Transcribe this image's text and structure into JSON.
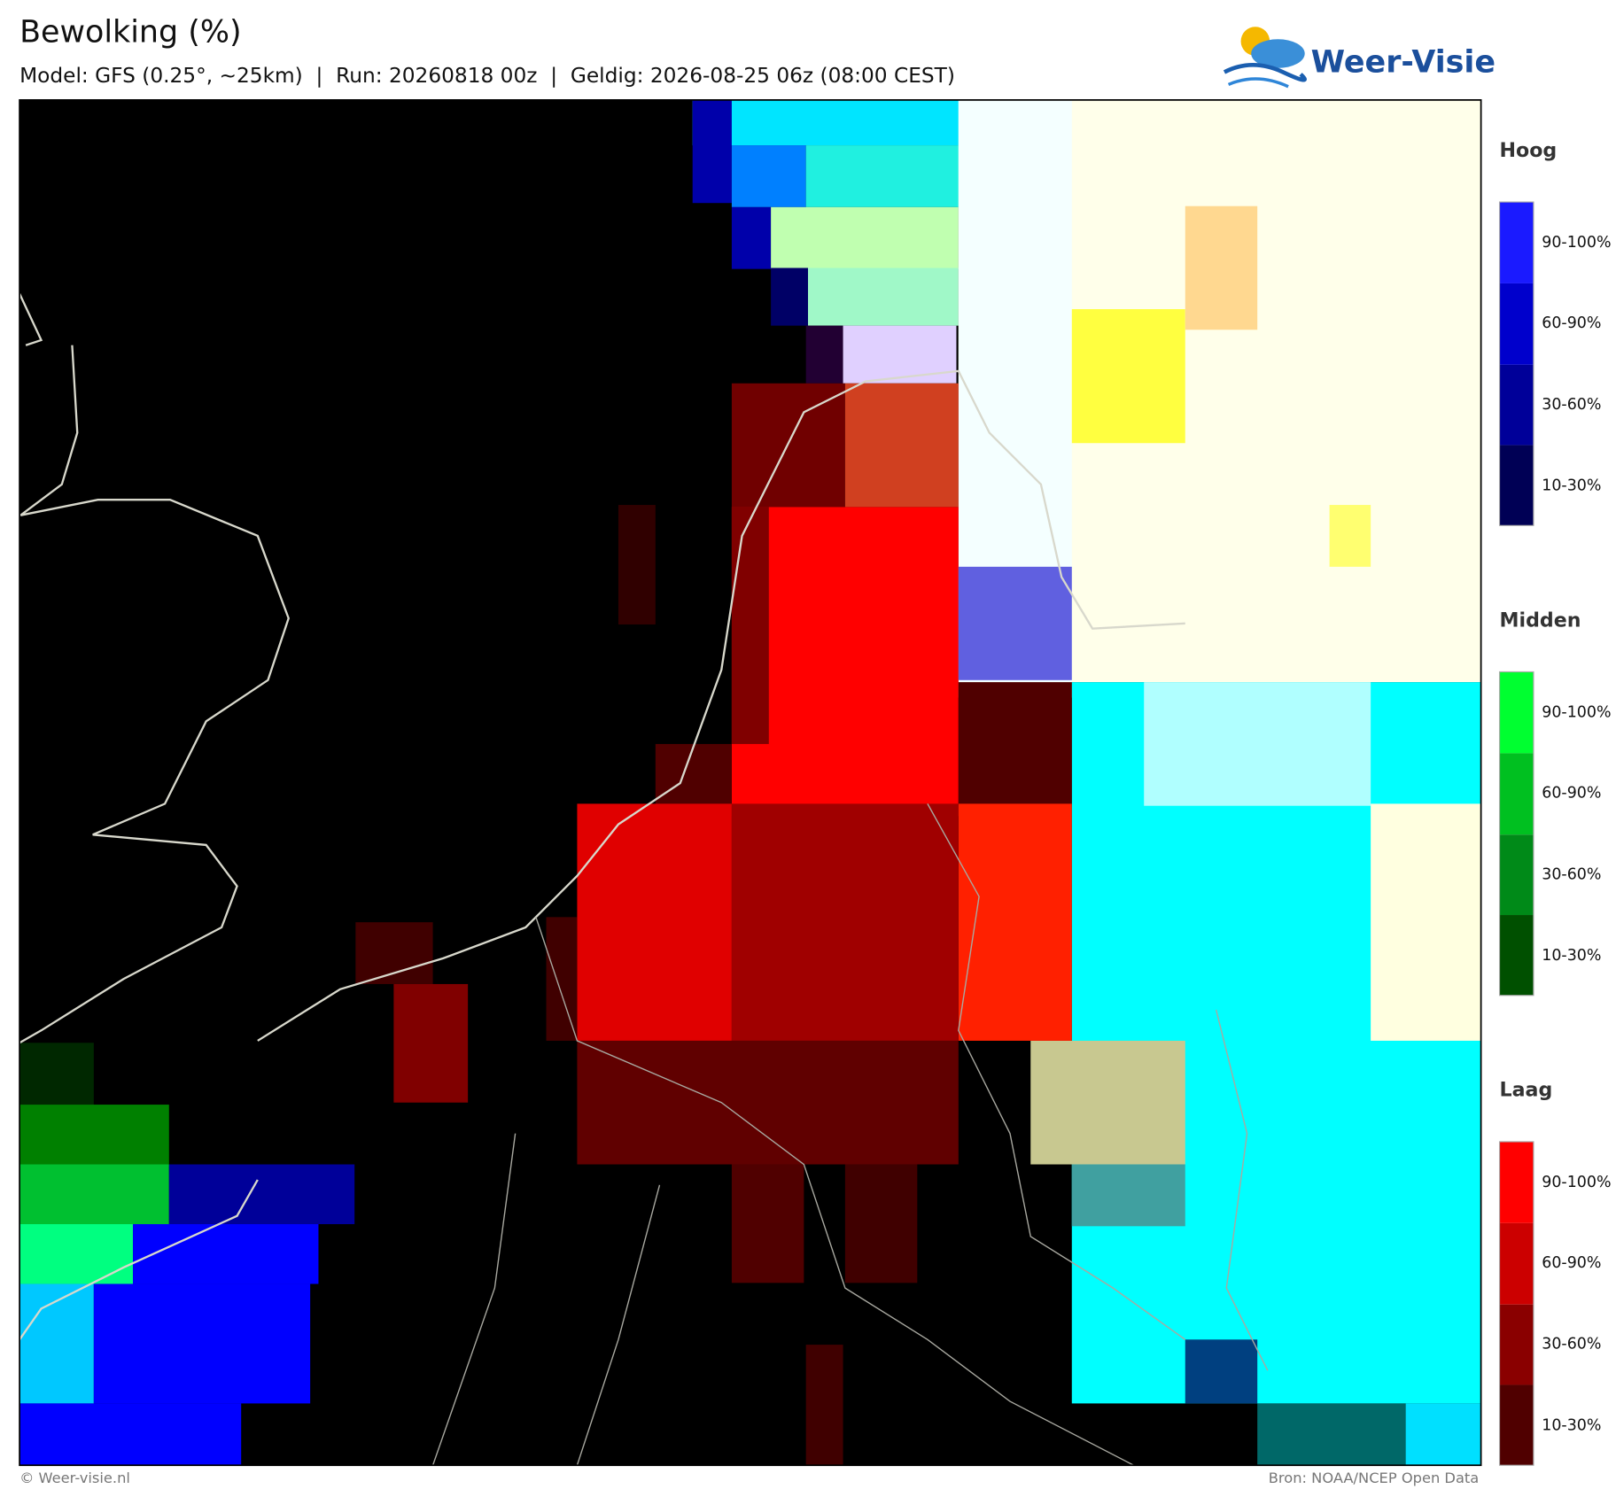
{
  "header": {
    "title": "Bewolking (%)",
    "subtitle": "Model: GFS (0.25°, ~25km)  |  Run: 20260818 00z  |  Geldig: 2026-08-25 06z (08:00 CEST)"
  },
  "logo": {
    "text": "Weer-Visie"
  },
  "legend": [
    {
      "title": "Hoog",
      "labels": [
        "90-100%",
        "60-90%",
        "30-60%",
        "10-30%"
      ]
    },
    {
      "title": "Midden",
      "labels": [
        "90-100%",
        "60-90%",
        "30-60%",
        "10-30%"
      ]
    },
    {
      "title": "Laag",
      "labels": [
        "90-100%",
        "60-90%",
        "30-60%",
        "10-30%"
      ]
    }
  ],
  "footer": {
    "left": "© Weer-visie.nl",
    "right": "Bron: NOAA/NCEP Open Data"
  }
}
